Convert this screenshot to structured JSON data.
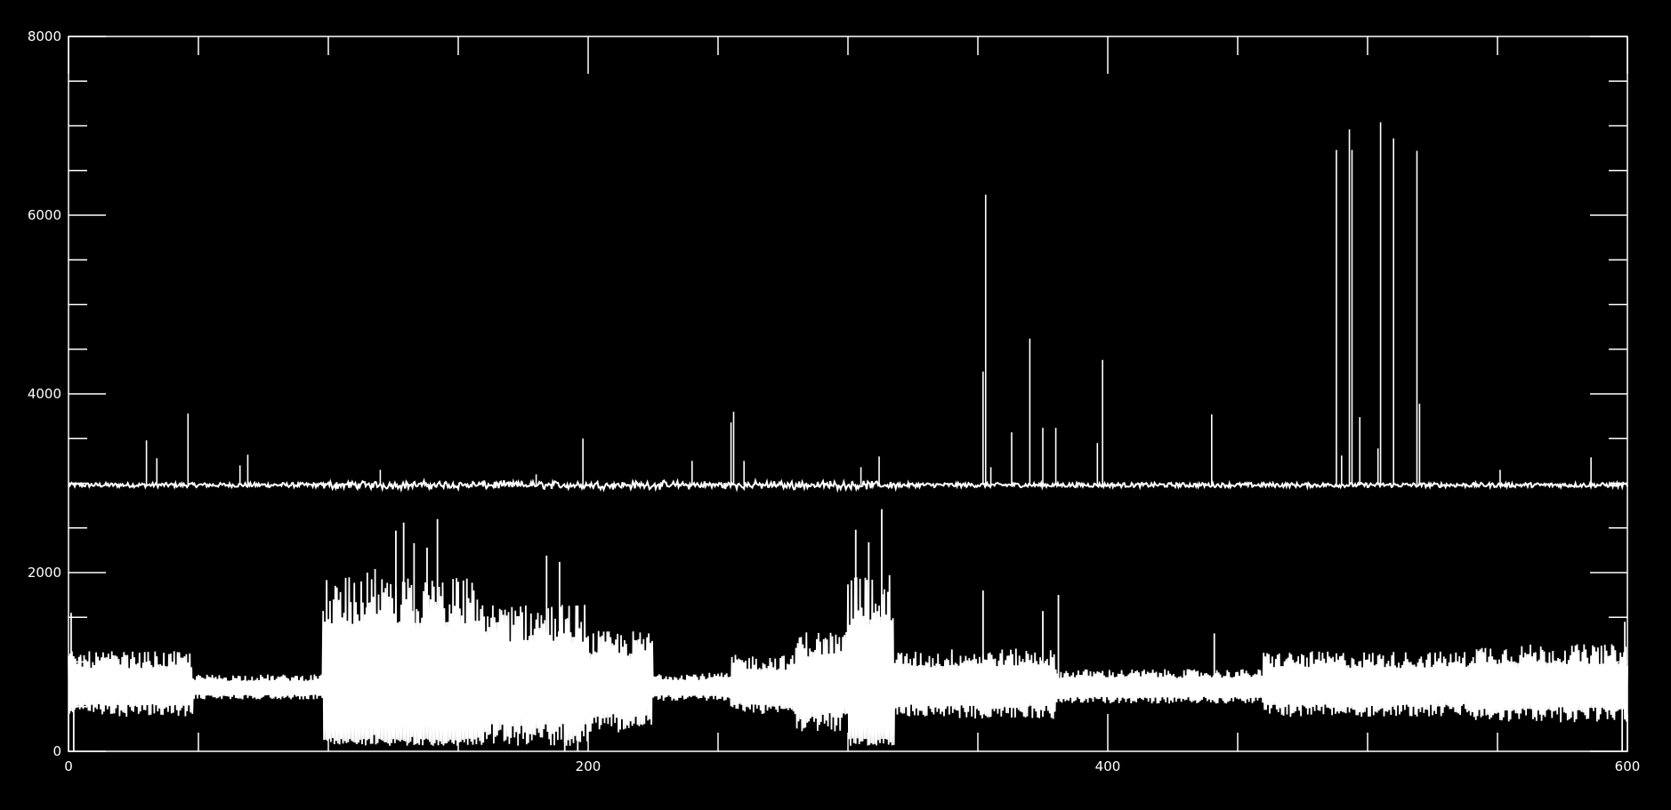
{
  "chart_data": {
    "type": "line",
    "title": "",
    "xlabel": "",
    "ylabel": "",
    "xlim": [
      0,
      600
    ],
    "ylim": [
      0,
      8000
    ],
    "x_ticks": [
      0,
      200,
      400,
      600
    ],
    "x_tick_labels": [
      "0",
      "200",
      "400",
      "600"
    ],
    "y_ticks": [
      0,
      2000,
      4000,
      6000,
      8000
    ],
    "y_tick_labels": [
      "0",
      "2000",
      "4000",
      "6000",
      "8000"
    ],
    "x_minor_step": 50,
    "y_minor_step": 500,
    "grid": false,
    "legend": "none",
    "colors": {
      "background": "#000000",
      "axes": "#ffffff",
      "lines": "#ffffff"
    },
    "series": [
      {
        "baseline": 2980,
        "noise": 25,
        "spikes": [
          {
            "x": 30,
            "y": 3480
          },
          {
            "x": 34,
            "y": 3280
          },
          {
            "x": 46,
            "y": 3780
          },
          {
            "x": 66,
            "y": 3200
          },
          {
            "x": 69,
            "y": 3320
          },
          {
            "x": 99,
            "y": 3000
          },
          {
            "x": 120,
            "y": 3150
          },
          {
            "x": 180,
            "y": 3100
          },
          {
            "x": 198,
            "y": 3500
          },
          {
            "x": 240,
            "y": 3250
          },
          {
            "x": 255,
            "y": 3680
          },
          {
            "x": 256,
            "y": 3800
          },
          {
            "x": 260,
            "y": 3250
          },
          {
            "x": 305,
            "y": 3180
          },
          {
            "x": 312,
            "y": 3300
          },
          {
            "x": 352,
            "y": 4250
          },
          {
            "x": 353,
            "y": 6230
          },
          {
            "x": 355,
            "y": 3180
          },
          {
            "x": 363,
            "y": 3570
          },
          {
            "x": 370,
            "y": 4620
          },
          {
            "x": 375,
            "y": 3620
          },
          {
            "x": 380,
            "y": 3620
          },
          {
            "x": 396,
            "y": 3450
          },
          {
            "x": 398,
            "y": 4380
          },
          {
            "x": 440,
            "y": 3770
          },
          {
            "x": 488,
            "y": 6730
          },
          {
            "x": 490,
            "y": 3310
          },
          {
            "x": 493,
            "y": 6960
          },
          {
            "x": 494,
            "y": 6730
          },
          {
            "x": 497,
            "y": 3740
          },
          {
            "x": 504,
            "y": 3390
          },
          {
            "x": 505,
            "y": 7040
          },
          {
            "x": 510,
            "y": 6860
          },
          {
            "x": 519,
            "y": 6720
          },
          {
            "x": 520,
            "y": 3890
          },
          {
            "x": 551,
            "y": 3150
          },
          {
            "x": 586,
            "y": 3290
          }
        ]
      },
      {
        "baseline": 700,
        "bursts": [
          {
            "from": 0,
            "to": 48,
            "amp": 420
          },
          {
            "from": 48,
            "to": 98,
            "amp": 160
          },
          {
            "from": 98,
            "to": 160,
            "amp": 1250
          },
          {
            "from": 160,
            "to": 200,
            "amp": 950
          },
          {
            "from": 200,
            "to": 225,
            "amp": 650
          },
          {
            "from": 225,
            "to": 255,
            "amp": 180
          },
          {
            "from": 255,
            "to": 280,
            "amp": 380
          },
          {
            "from": 280,
            "to": 300,
            "amp": 650
          },
          {
            "from": 300,
            "to": 318,
            "amp": 1300
          },
          {
            "from": 318,
            "to": 340,
            "amp": 420
          },
          {
            "from": 340,
            "to": 380,
            "amp": 450
          },
          {
            "from": 380,
            "to": 460,
            "amp": 220
          },
          {
            "from": 460,
            "to": 540,
            "amp": 420
          },
          {
            "from": 540,
            "to": 600,
            "amp": 500
          }
        ],
        "spikes": [
          {
            "x": 1,
            "y": 1550
          },
          {
            "x": 2,
            "y": 0
          },
          {
            "x": 115,
            "y": 2000
          },
          {
            "x": 118,
            "y": 2040
          },
          {
            "x": 126,
            "y": 2470
          },
          {
            "x": 129,
            "y": 2560
          },
          {
            "x": 133,
            "y": 2330
          },
          {
            "x": 138,
            "y": 2280
          },
          {
            "x": 142,
            "y": 2600
          },
          {
            "x": 184,
            "y": 2190
          },
          {
            "x": 189,
            "y": 2120
          },
          {
            "x": 191,
            "y": 0
          },
          {
            "x": 196,
            "y": 0
          },
          {
            "x": 303,
            "y": 2480
          },
          {
            "x": 308,
            "y": 2340
          },
          {
            "x": 313,
            "y": 2710
          },
          {
            "x": 352,
            "y": 1800
          },
          {
            "x": 375,
            "y": 1570
          },
          {
            "x": 381,
            "y": 1750
          },
          {
            "x": 441,
            "y": 1320
          },
          {
            "x": 598,
            "y": 0
          },
          {
            "x": 599,
            "y": 1450
          }
        ]
      }
    ]
  }
}
